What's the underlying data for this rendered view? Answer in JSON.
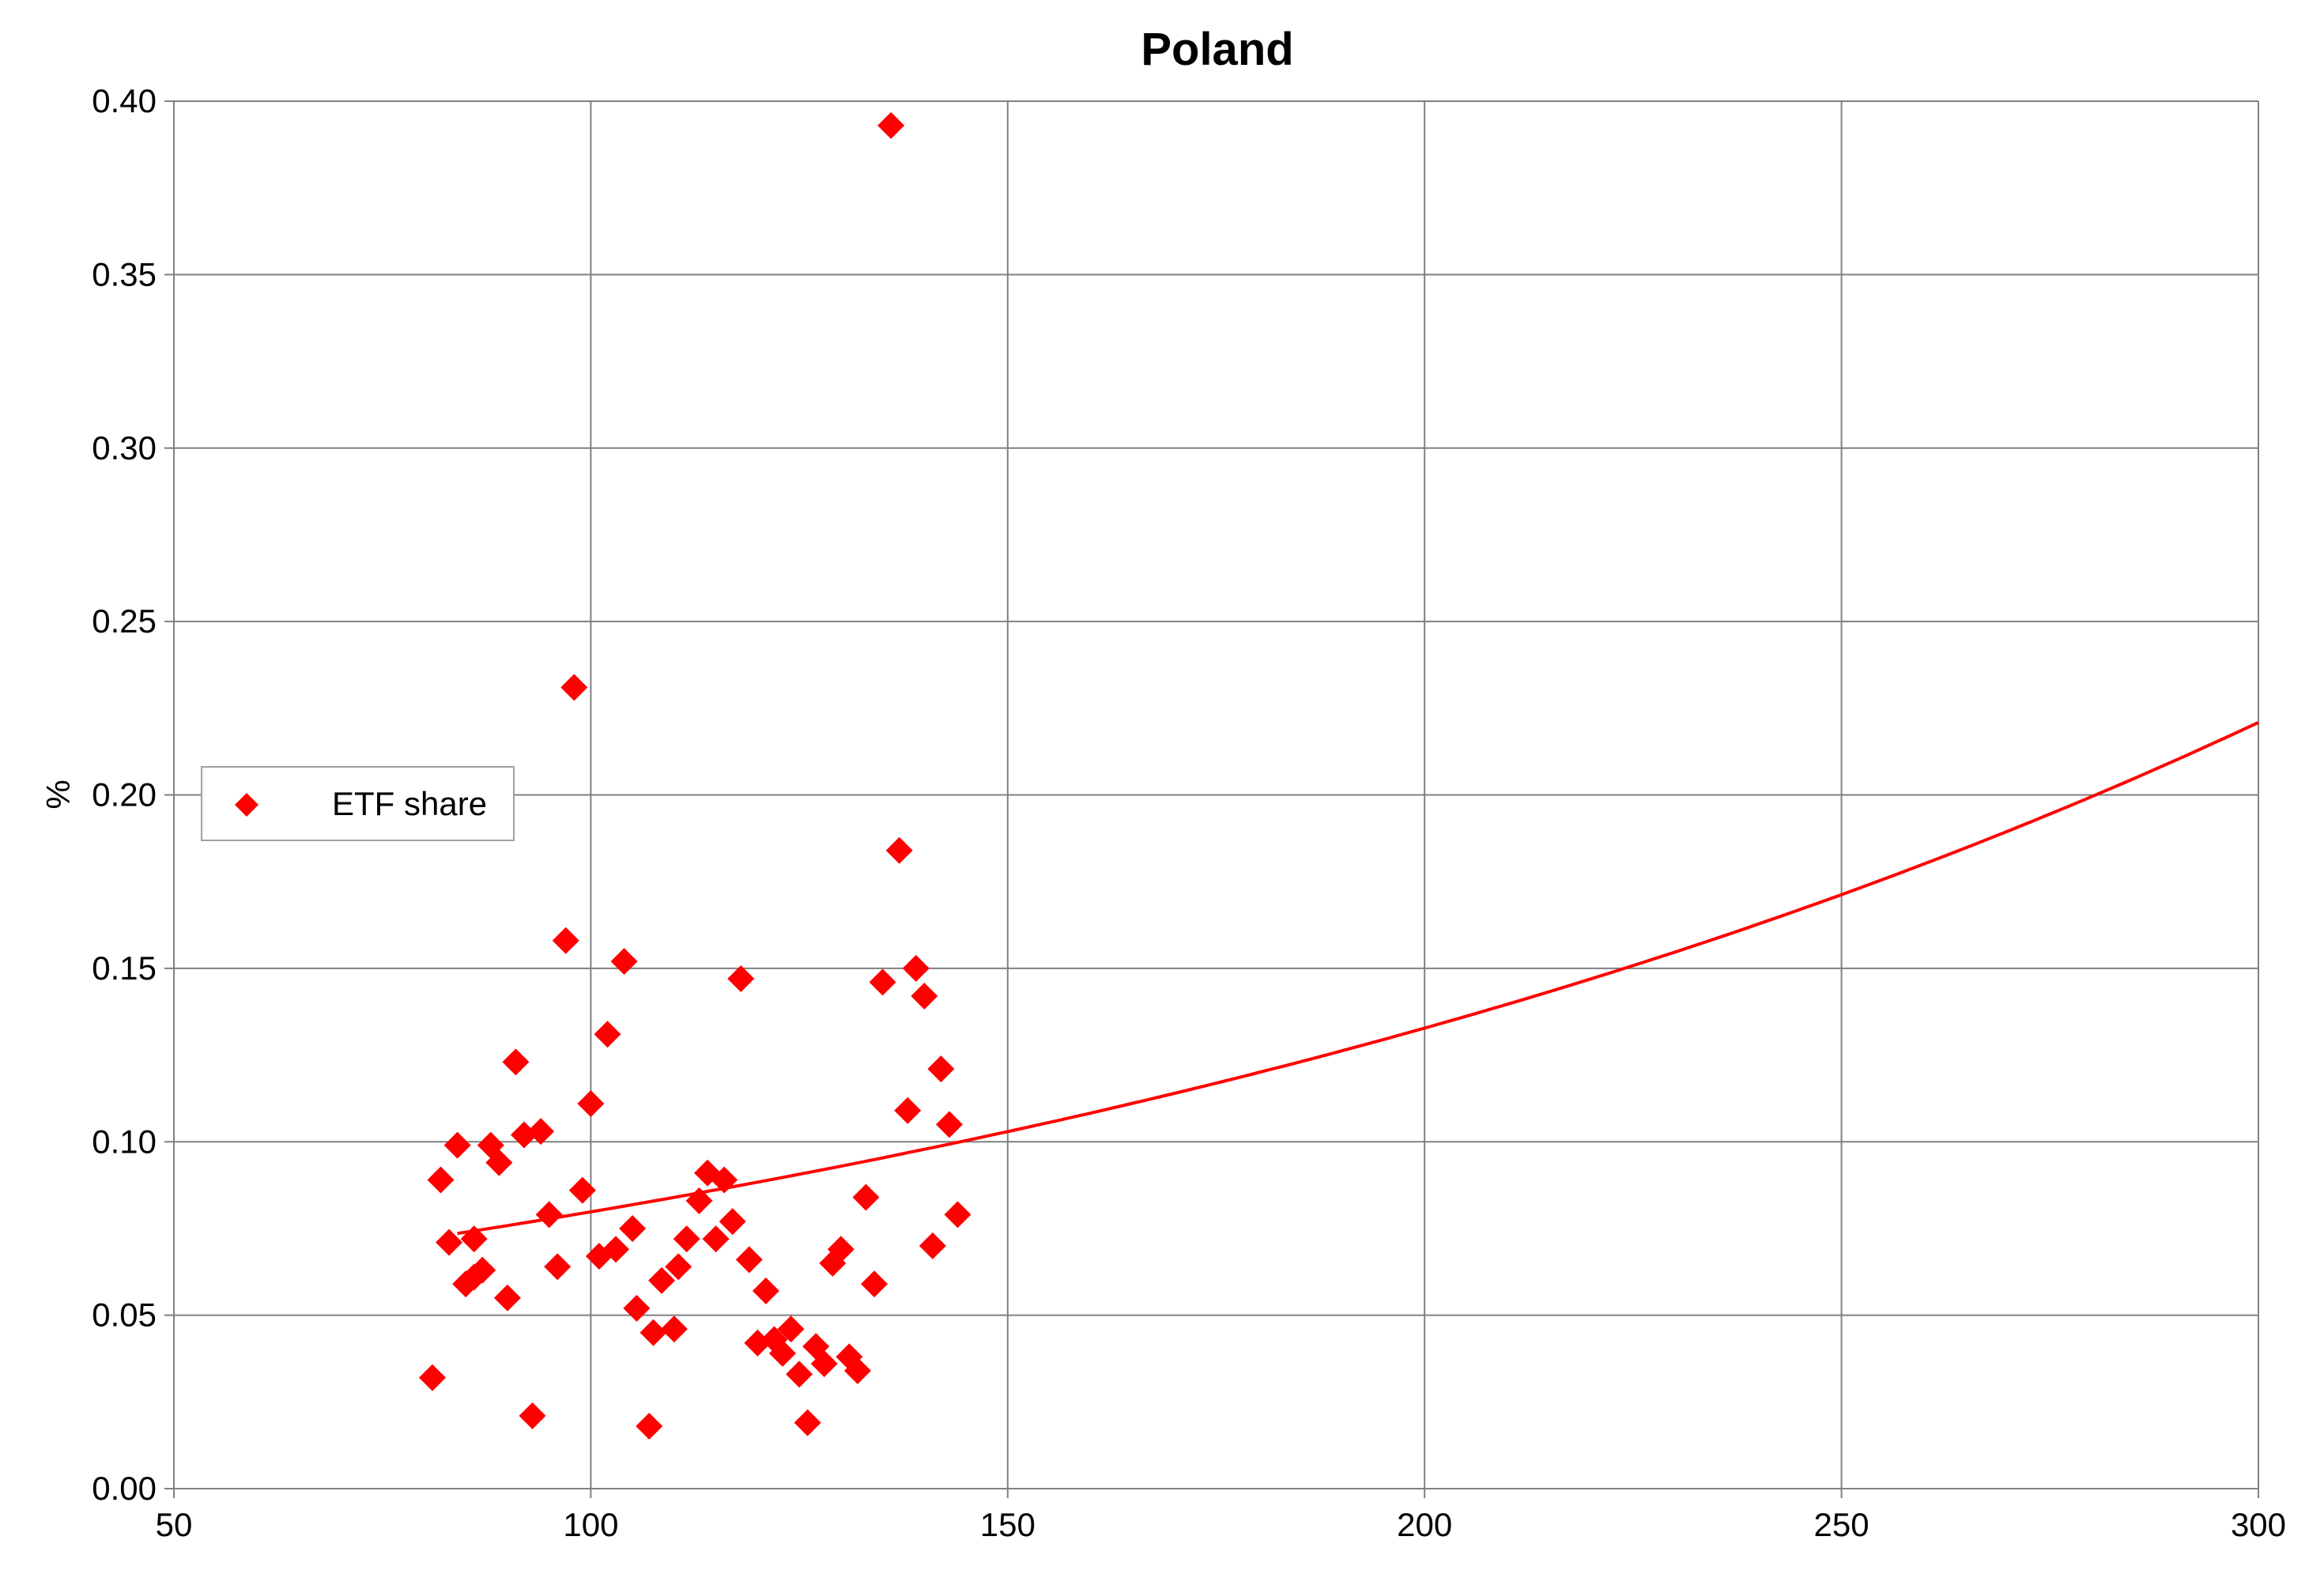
{
  "chart_data": {
    "type": "scatter",
    "title": "Poland",
    "xlabel": "",
    "ylabel": "%",
    "xlim": [
      50,
      300
    ],
    "ylim": [
      0.0,
      0.4
    ],
    "x_ticks": [
      "50",
      "100",
      "150",
      "200",
      "250",
      "300"
    ],
    "y_ticks": [
      "0.00",
      "0.05",
      "0.10",
      "0.15",
      "0.20",
      "0.25",
      "0.30",
      "0.35",
      "0.40"
    ],
    "grid": true,
    "legend_position": "left",
    "colors": {
      "series": "#ff0000",
      "grid": "#808080",
      "axis": "#808080",
      "legend_border": "#a0a0a0"
    },
    "series": [
      {
        "name": "ETF share",
        "marker": "diamond",
        "points": [
          [
            81,
            0.032
          ],
          [
            82,
            0.089
          ],
          [
            83,
            0.071
          ],
          [
            84,
            0.099
          ],
          [
            85,
            0.059
          ],
          [
            86,
            0.072
          ],
          [
            86,
            0.061
          ],
          [
            87,
            0.063
          ],
          [
            88,
            0.099
          ],
          [
            89,
            0.094
          ],
          [
            90,
            0.055
          ],
          [
            91,
            0.123
          ],
          [
            92,
            0.102
          ],
          [
            93,
            0.021
          ],
          [
            94,
            0.103
          ],
          [
            95,
            0.079
          ],
          [
            96,
            0.064
          ],
          [
            97,
            0.158
          ],
          [
            98,
            0.231
          ],
          [
            99,
            0.086
          ],
          [
            100,
            0.111
          ],
          [
            101,
            0.067
          ],
          [
            102,
            0.131
          ],
          [
            103,
            0.069
          ],
          [
            104,
            0.152
          ],
          [
            105,
            0.075
          ],
          [
            105.5,
            0.052
          ],
          [
            107,
            0.018
          ],
          [
            107.5,
            0.045
          ],
          [
            108.5,
            0.06
          ],
          [
            110,
            0.046
          ],
          [
            110.5,
            0.064
          ],
          [
            111.5,
            0.072
          ],
          [
            113,
            0.083
          ],
          [
            114,
            0.091
          ],
          [
            115,
            0.072
          ],
          [
            116,
            0.089
          ],
          [
            117,
            0.077
          ],
          [
            118,
            0.147
          ],
          [
            119,
            0.066
          ],
          [
            120,
            0.042
          ],
          [
            121,
            0.057
          ],
          [
            122,
            0.043
          ],
          [
            123,
            0.039
          ],
          [
            124,
            0.046
          ],
          [
            125,
            0.033
          ],
          [
            126,
            0.019
          ],
          [
            127,
            0.041
          ],
          [
            128,
            0.036
          ],
          [
            129,
            0.065
          ],
          [
            130,
            0.069
          ],
          [
            131,
            0.038
          ],
          [
            132,
            0.034
          ],
          [
            133,
            0.084
          ],
          [
            134,
            0.059
          ],
          [
            135,
            0.146
          ],
          [
            136,
            0.393
          ],
          [
            137,
            0.184
          ],
          [
            138,
            0.109
          ],
          [
            139,
            0.15
          ],
          [
            140,
            0.142
          ],
          [
            141,
            0.07
          ],
          [
            142,
            0.121
          ],
          [
            143,
            0.105
          ],
          [
            144,
            0.079
          ]
        ]
      }
    ],
    "trendline": {
      "type": "exponential",
      "x": [
        84,
        100,
        120,
        150,
        200,
        250,
        300
      ],
      "y": [
        0.075,
        0.08,
        0.088,
        0.1,
        0.133,
        0.172,
        0.222
      ]
    }
  }
}
